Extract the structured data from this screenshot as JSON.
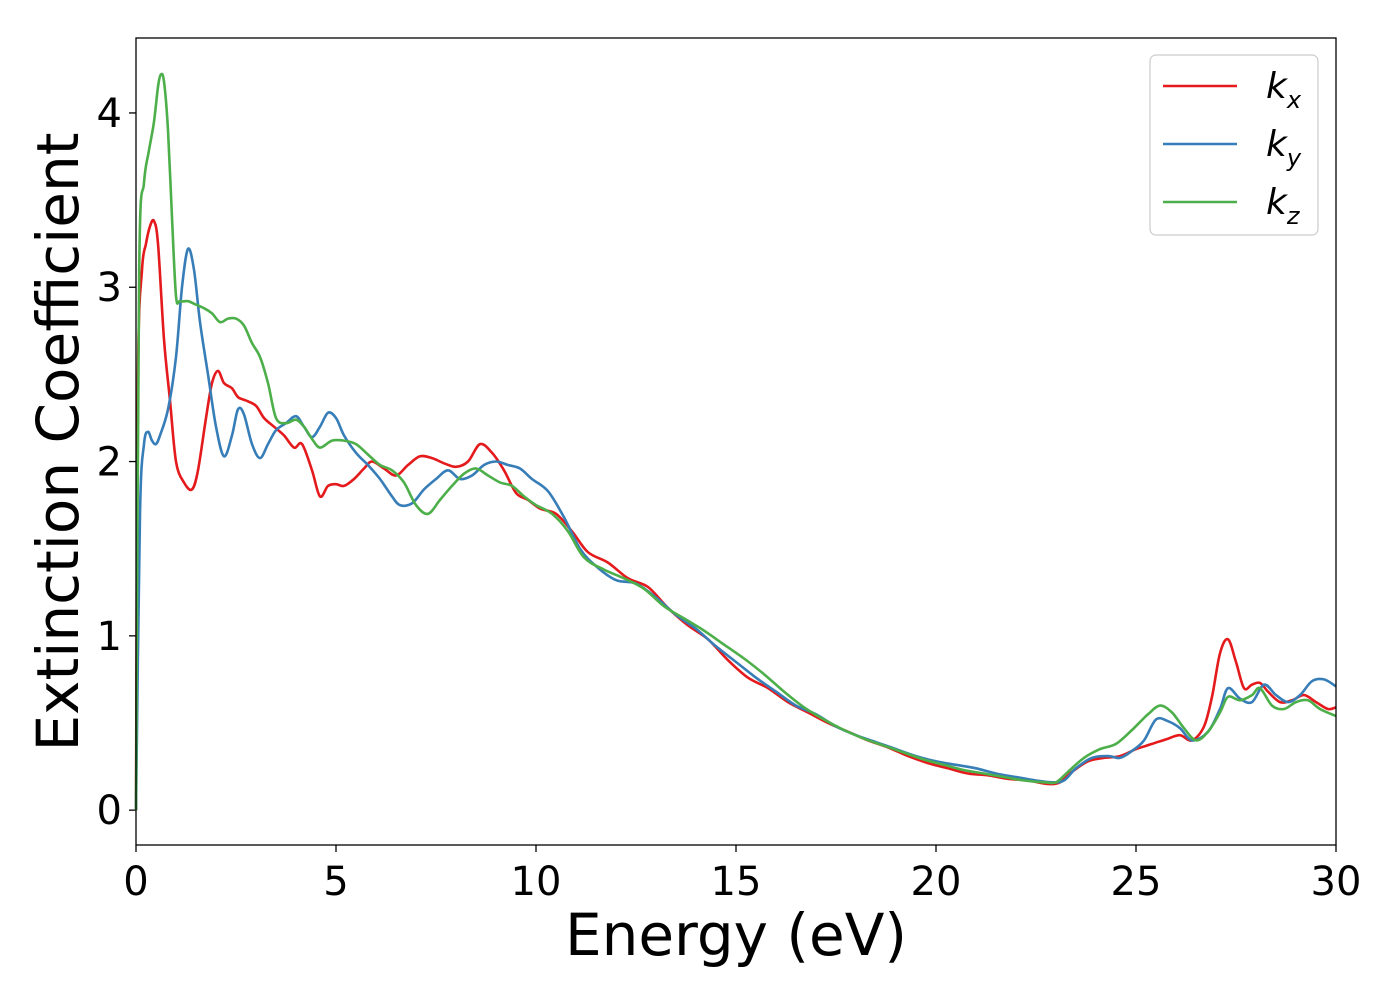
{
  "chart_data": {
    "type": "line",
    "title": "",
    "xlabel": "Energy (eV)",
    "ylabel": "Extinction Coefficient",
    "xlim": [
      0,
      30
    ],
    "ylim": [
      -0.2,
      4.43
    ],
    "xticks": [
      0,
      5,
      10,
      15,
      20,
      25,
      30
    ],
    "yticks": [
      0,
      1,
      2,
      3,
      4
    ],
    "grid": false,
    "legend_position": "top-right",
    "series": [
      {
        "name": "k_x",
        "legend_base": "k",
        "legend_sub": "x",
        "color": "#e41a1c",
        "x": [
          0,
          0.05,
          0.15,
          0.25,
          0.35,
          0.45,
          0.55,
          0.7,
          0.85,
          1.0,
          1.2,
          1.4,
          1.55,
          1.75,
          1.9,
          2.05,
          2.2,
          2.4,
          2.55,
          2.75,
          3.0,
          3.2,
          3.45,
          3.7,
          3.95,
          4.15,
          4.4,
          4.6,
          4.8,
          5.0,
          5.2,
          5.45,
          5.7,
          5.9,
          6.2,
          6.5,
          6.8,
          7.1,
          7.4,
          7.7,
          8.0,
          8.3,
          8.6,
          8.9,
          9.2,
          9.5,
          9.8,
          10.1,
          10.5,
          10.9,
          11.3,
          11.8,
          12.3,
          12.8,
          13.3,
          13.8,
          14.3,
          14.8,
          15.3,
          15.8,
          16.3,
          16.8,
          17.3,
          17.8,
          18.3,
          18.8,
          19.3,
          19.8,
          20.3,
          20.8,
          21.3,
          21.8,
          22.3,
          22.8,
          23.1,
          23.4,
          23.8,
          24.2,
          24.6,
          25.0,
          25.4,
          25.8,
          26.1,
          26.4,
          26.7,
          26.9,
          27.1,
          27.3,
          27.5,
          27.7,
          27.9,
          28.1,
          28.3,
          28.6,
          28.9,
          29.2,
          29.5,
          29.8,
          30.0
        ],
        "y": [
          0.0,
          2.5,
          3.1,
          3.25,
          3.35,
          3.38,
          3.25,
          2.7,
          2.35,
          2.0,
          1.88,
          1.84,
          1.95,
          2.25,
          2.45,
          2.52,
          2.45,
          2.42,
          2.37,
          2.35,
          2.32,
          2.25,
          2.2,
          2.15,
          2.08,
          2.1,
          1.95,
          1.8,
          1.86,
          1.87,
          1.86,
          1.9,
          1.96,
          2.0,
          1.96,
          1.92,
          1.98,
          2.03,
          2.02,
          1.99,
          1.97,
          2.0,
          2.1,
          2.05,
          1.95,
          1.82,
          1.78,
          1.73,
          1.7,
          1.6,
          1.48,
          1.42,
          1.33,
          1.28,
          1.16,
          1.06,
          0.98,
          0.86,
          0.76,
          0.7,
          0.62,
          0.56,
          0.5,
          0.45,
          0.4,
          0.36,
          0.31,
          0.27,
          0.24,
          0.21,
          0.2,
          0.18,
          0.17,
          0.15,
          0.16,
          0.22,
          0.28,
          0.3,
          0.31,
          0.35,
          0.38,
          0.41,
          0.43,
          0.4,
          0.48,
          0.65,
          0.9,
          0.98,
          0.85,
          0.7,
          0.72,
          0.73,
          0.68,
          0.62,
          0.63,
          0.66,
          0.62,
          0.58,
          0.59
        ]
      },
      {
        "name": "k_y",
        "legend_base": "k",
        "legend_sub": "y",
        "color": "#377eb8",
        "x": [
          0,
          0.1,
          0.2,
          0.3,
          0.4,
          0.5,
          0.6,
          0.8,
          1.0,
          1.15,
          1.3,
          1.45,
          1.6,
          1.8,
          2.0,
          2.2,
          2.4,
          2.55,
          2.7,
          2.9,
          3.1,
          3.3,
          3.5,
          3.75,
          4.0,
          4.2,
          4.4,
          4.6,
          4.8,
          5.0,
          5.2,
          5.5,
          5.8,
          6.1,
          6.4,
          6.6,
          6.9,
          7.2,
          7.5,
          7.8,
          8.1,
          8.4,
          8.7,
          9.0,
          9.3,
          9.6,
          9.9,
          10.3,
          10.7,
          11.1,
          11.5,
          12.0,
          12.5,
          13.0,
          13.5,
          14.0,
          14.5,
          15.0,
          15.5,
          16.0,
          16.5,
          17.0,
          17.5,
          18.0,
          18.5,
          19.0,
          19.5,
          20.0,
          20.5,
          21.0,
          21.5,
          22.0,
          22.5,
          22.9,
          23.2,
          23.5,
          23.9,
          24.3,
          24.6,
          24.9,
          25.2,
          25.5,
          25.8,
          26.1,
          26.4,
          26.8,
          27.1,
          27.3,
          27.6,
          27.9,
          28.2,
          28.5,
          28.8,
          29.1,
          29.4,
          29.7,
          30.0
        ],
        "y": [
          0.0,
          1.7,
          2.1,
          2.17,
          2.12,
          2.1,
          2.15,
          2.3,
          2.6,
          3.0,
          3.22,
          3.1,
          2.8,
          2.5,
          2.2,
          2.03,
          2.15,
          2.3,
          2.27,
          2.1,
          2.02,
          2.1,
          2.18,
          2.22,
          2.26,
          2.2,
          2.14,
          2.2,
          2.28,
          2.25,
          2.15,
          2.05,
          1.98,
          1.9,
          1.8,
          1.75,
          1.76,
          1.84,
          1.9,
          1.95,
          1.9,
          1.92,
          1.98,
          2.0,
          1.98,
          1.96,
          1.9,
          1.83,
          1.68,
          1.5,
          1.4,
          1.32,
          1.3,
          1.22,
          1.12,
          1.04,
          0.94,
          0.85,
          0.76,
          0.68,
          0.6,
          0.55,
          0.48,
          0.43,
          0.39,
          0.35,
          0.31,
          0.28,
          0.26,
          0.24,
          0.21,
          0.19,
          0.17,
          0.16,
          0.17,
          0.24,
          0.3,
          0.31,
          0.3,
          0.34,
          0.4,
          0.52,
          0.51,
          0.47,
          0.4,
          0.45,
          0.58,
          0.7,
          0.64,
          0.62,
          0.72,
          0.66,
          0.62,
          0.66,
          0.74,
          0.75,
          0.71
        ]
      },
      {
        "name": "k_z",
        "legend_base": "k",
        "legend_sub": "z",
        "color": "#4daf4a",
        "x": [
          0,
          0.08,
          0.2,
          0.32,
          0.45,
          0.55,
          0.62,
          0.7,
          0.8,
          0.9,
          1.0,
          1.1,
          1.3,
          1.5,
          1.7,
          1.9,
          2.1,
          2.3,
          2.5,
          2.7,
          2.9,
          3.1,
          3.3,
          3.5,
          3.75,
          4.0,
          4.2,
          4.4,
          4.6,
          4.9,
          5.2,
          5.5,
          5.8,
          6.1,
          6.4,
          6.7,
          7.0,
          7.3,
          7.6,
          7.9,
          8.2,
          8.5,
          8.8,
          9.1,
          9.4,
          9.7,
          10.0,
          10.4,
          10.8,
          11.2,
          11.7,
          12.2,
          12.7,
          13.2,
          13.7,
          14.2,
          14.7,
          15.2,
          15.7,
          16.2,
          16.7,
          17.2,
          17.7,
          18.2,
          18.7,
          19.2,
          19.7,
          20.2,
          20.7,
          21.2,
          21.7,
          22.2,
          22.7,
          23.0,
          23.3,
          23.7,
          24.1,
          24.5,
          24.9,
          25.3,
          25.6,
          25.9,
          26.2,
          26.5,
          26.8,
          27.1,
          27.3,
          27.6,
          27.9,
          28.1,
          28.4,
          28.7,
          29.0,
          29.3,
          29.6,
          30.0
        ],
        "y": [
          0.0,
          3.1,
          3.6,
          3.78,
          3.95,
          4.15,
          4.22,
          4.18,
          3.9,
          3.4,
          2.95,
          2.92,
          2.92,
          2.9,
          2.88,
          2.85,
          2.8,
          2.82,
          2.82,
          2.78,
          2.68,
          2.6,
          2.45,
          2.25,
          2.22,
          2.24,
          2.2,
          2.13,
          2.08,
          2.12,
          2.12,
          2.1,
          2.04,
          1.98,
          1.95,
          1.88,
          1.75,
          1.7,
          1.78,
          1.86,
          1.93,
          1.96,
          1.92,
          1.88,
          1.86,
          1.8,
          1.75,
          1.7,
          1.6,
          1.45,
          1.38,
          1.33,
          1.27,
          1.17,
          1.1,
          1.03,
          0.95,
          0.87,
          0.78,
          0.68,
          0.59,
          0.52,
          0.46,
          0.41,
          0.37,
          0.33,
          0.29,
          0.26,
          0.23,
          0.21,
          0.19,
          0.17,
          0.16,
          0.16,
          0.22,
          0.3,
          0.35,
          0.38,
          0.46,
          0.55,
          0.6,
          0.56,
          0.47,
          0.4,
          0.45,
          0.56,
          0.65,
          0.63,
          0.66,
          0.7,
          0.6,
          0.58,
          0.62,
          0.63,
          0.58,
          0.54
        ]
      }
    ]
  }
}
